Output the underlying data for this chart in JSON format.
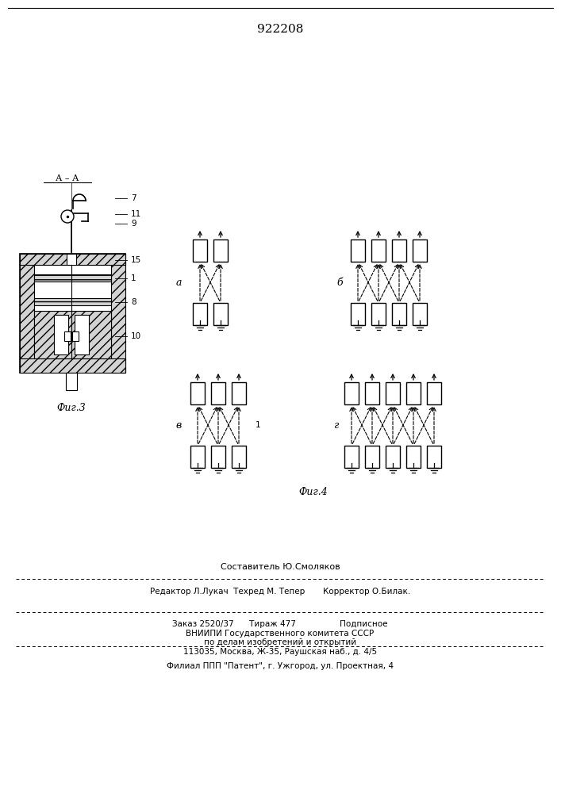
{
  "patent_number": "922208",
  "fig3_caption": "Фиг.3",
  "fig4_caption": "Фиг.4",
  "bg_color": "#ffffff",
  "fig3_aa_label": "А – А",
  "fig3_labels": [
    "7",
    "11",
    "9",
    "15",
    "1",
    "8",
    "10"
  ],
  "fig4_panel_labels": [
    "а",
    "б",
    "в",
    "г"
  ],
  "footer": {
    "line1": "Составитель Ю.Смоляков",
    "line2": "Редактор Л.Лукач  Техред М. Тепер       Корректор О.Билак.",
    "line3": "Заказ 2520/37      Тираж 477                 Подписное",
    "line4": "ВНИИПИ Государственного комитета СССР",
    "line5": "по делам изобретений и открытий",
    "line6": "113035, Москва, Ж-35, Раушская наб., д. 4/5",
    "line7": "Филиал ППП \"Патент\", г. Ужгород, ул. Проектная, 4"
  }
}
